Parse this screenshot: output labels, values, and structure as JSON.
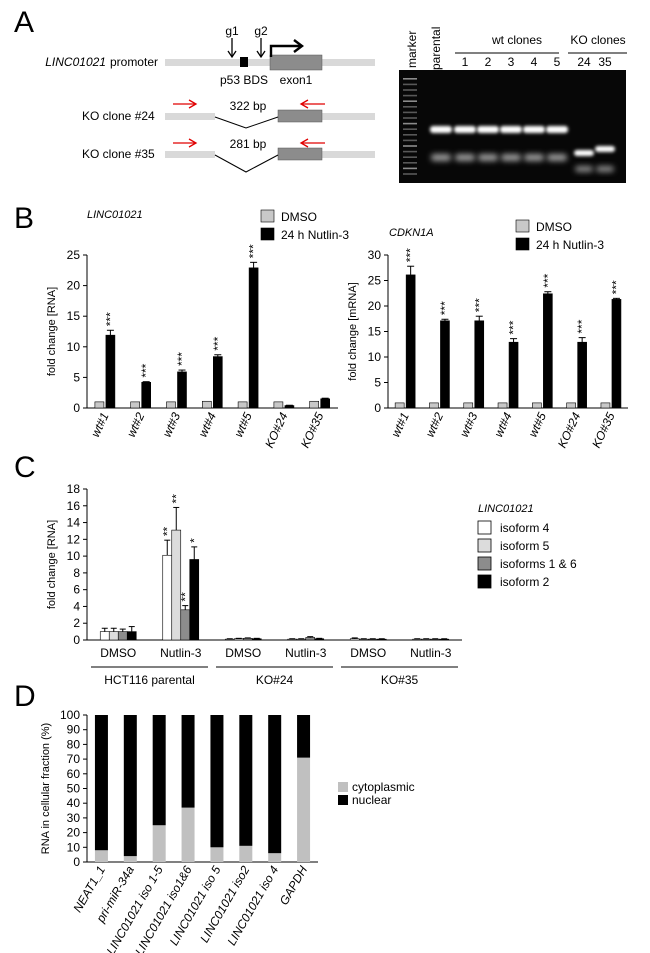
{
  "panels": {
    "a": "A",
    "b": "B",
    "c": "C",
    "d": "D"
  },
  "panel_a": {
    "promoter_label": "promoter",
    "gene": "LINC01021",
    "g1": "g1",
    "g2": "g2",
    "p53bds": "p53 BDS",
    "exon1": "exon1",
    "ko24_label": "KO clone #24",
    "ko35_label": "KO clone #35",
    "ko24_size": "322 bp",
    "ko35_size": "281 bp",
    "gel": {
      "marker": "marker",
      "parental": "parental",
      "wt_header": "wt clones",
      "ko_header": "KO clones",
      "wt_lanes": [
        "1",
        "2",
        "3",
        "4",
        "5"
      ],
      "ko_lanes": [
        "24",
        "35"
      ]
    }
  },
  "colors": {
    "dmso": "#c8c8c8",
    "nutlin": "#000000",
    "iso4": "#ffffff",
    "iso5": "#dcdcdc",
    "iso16": "#8c8c8c",
    "iso2": "#000000",
    "cytoplasmic": "#c0c0c0",
    "nuclear": "#000000",
    "arrow_red": "#e00000"
  },
  "chart_data": [
    {
      "id": "b1",
      "type": "bar",
      "title": "LINC01021",
      "ylabel": "fold change [RNA]",
      "ylim": [
        0,
        25
      ],
      "yticks": [
        0,
        5,
        10,
        15,
        20,
        25
      ],
      "categories": [
        "wt#1",
        "wt#2",
        "wt#3",
        "wt#4",
        "wt#5",
        "KO#24",
        "KO#35"
      ],
      "legend": [
        "DMSO",
        "24 h Nutlin-3"
      ],
      "series": [
        {
          "name": "DMSO",
          "values": [
            1,
            1,
            1,
            1.1,
            1,
            1,
            1.1
          ],
          "errors": [
            0.1,
            0.1,
            0.1,
            0.1,
            0.1,
            0.1,
            0.1
          ]
        },
        {
          "name": "24 h Nutlin-3",
          "values": [
            11.9,
            4.2,
            5.9,
            8.4,
            22.9,
            0.4,
            1.5
          ],
          "errors": [
            0.8,
            0.1,
            0.3,
            0.3,
            0.9,
            0.05,
            0.1
          ]
        }
      ],
      "significance": [
        "***",
        "***",
        "***",
        "***",
        "***",
        "",
        ""
      ]
    },
    {
      "id": "b2",
      "type": "bar",
      "title": "CDKN1A",
      "ylabel": "fold change [mRNA]",
      "ylim": [
        0,
        30
      ],
      "yticks": [
        0,
        5,
        10,
        15,
        20,
        25,
        30
      ],
      "categories": [
        "wt#1",
        "wt#2",
        "wt#3",
        "wt#4",
        "wt#5",
        "KO#24",
        "KO#35"
      ],
      "legend": [
        "DMSO",
        "24 h Nutlin-3"
      ],
      "series": [
        {
          "name": "DMSO",
          "values": [
            1,
            1,
            1,
            1,
            1,
            1,
            1
          ],
          "errors": [
            0.1,
            0.1,
            0.1,
            0.1,
            0.1,
            0.1,
            0.1
          ]
        },
        {
          "name": "24 h Nutlin-3",
          "values": [
            26.1,
            17.1,
            17.1,
            12.9,
            22.4,
            12.9,
            21.3
          ],
          "errors": [
            1.7,
            0.3,
            0.9,
            0.7,
            0.4,
            0.9,
            0.2
          ]
        }
      ],
      "significance": [
        "***",
        "***",
        "***",
        "***",
        "***",
        "***",
        "***"
      ]
    },
    {
      "id": "c",
      "type": "bar",
      "title": "LINC01021",
      "ylabel": "fold change [RNA]",
      "ylim": [
        0,
        18
      ],
      "yticks": [
        0,
        2,
        4,
        6,
        8,
        10,
        12,
        14,
        16,
        18
      ],
      "groups": [
        "DMSO",
        "Nutlin-3",
        "DMSO",
        "Nutlin-3",
        "DMSO",
        "Nutlin-3"
      ],
      "cell_lines": [
        "HCT116 parental",
        "KO#24",
        "KO#35"
      ],
      "series": [
        {
          "name": "isoform 4",
          "values": [
            1.0,
            10.1,
            0.1,
            0.1,
            0.15,
            0.1
          ],
          "errors": [
            0.4,
            1.8,
            0.05,
            0.05,
            0.1,
            0.05
          ]
        },
        {
          "name": "isoform 5",
          "values": [
            1.0,
            13.1,
            0.15,
            0.1,
            0.1,
            0.1
          ],
          "errors": [
            0.4,
            2.7,
            0.05,
            0.05,
            0.05,
            0.05
          ]
        },
        {
          "name": "isoforms 1 & 6",
          "values": [
            1.0,
            3.6,
            0.2,
            0.3,
            0.1,
            0.1
          ],
          "errors": [
            0.3,
            0.5,
            0.05,
            0.1,
            0.05,
            0.05
          ]
        },
        {
          "name": "isoform 2",
          "values": [
            1.0,
            9.6,
            0.15,
            0.15,
            0.1,
            0.1
          ],
          "errors": [
            0.6,
            1.5,
            0.05,
            0.05,
            0.05,
            0.05
          ]
        }
      ],
      "significance": [
        "**",
        "**",
        "**",
        "*"
      ]
    },
    {
      "id": "d",
      "type": "bar",
      "stacked": true,
      "ylabel": "RNA in cellular fraction (%)",
      "ylim": [
        0,
        100
      ],
      "yticks": [
        0,
        10,
        20,
        30,
        40,
        50,
        60,
        70,
        80,
        90,
        100
      ],
      "categories": [
        "NEAT1_1",
        "pri-miR-34a",
        "LINC01021 iso 1-5",
        "LINC01021 iso1&6",
        "LINC01021 iso 5",
        "LINC01021 iso2",
        "LINC01021 iso 4",
        "GAPDH"
      ],
      "series": [
        {
          "name": "cytoplasmic",
          "values": [
            8,
            4,
            25,
            37,
            10,
            11,
            6,
            71
          ]
        },
        {
          "name": "nuclear",
          "values": [
            92,
            96,
            75,
            63,
            90,
            89,
            94,
            29
          ]
        }
      ]
    }
  ]
}
